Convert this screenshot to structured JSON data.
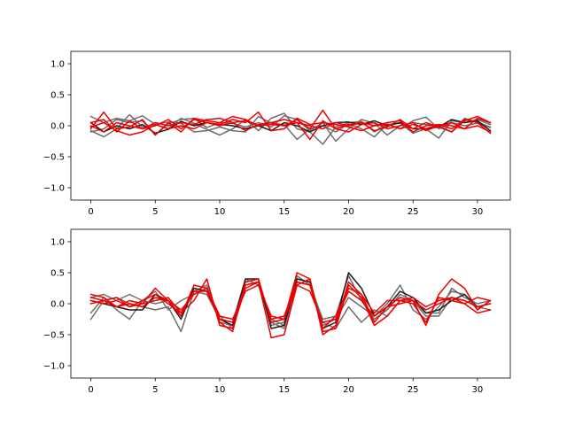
{
  "chart_data": [
    {
      "type": "line",
      "title": "",
      "xlabel": "",
      "ylabel": "",
      "xlim": [
        -1.55,
        32.55
      ],
      "ylim": [
        -1.2,
        1.2
      ],
      "xticks": [
        0,
        5,
        10,
        15,
        20,
        25,
        30
      ],
      "yticks": [
        1.0,
        0.5,
        0.0,
        -0.5,
        -1.0
      ],
      "ytick_labels": [
        "1.0",
        "0.5",
        "0.0",
        "−0.5",
        "−1.0"
      ],
      "grid": false,
      "legend": "none",
      "series": [
        {
          "color": "#6e6e6e",
          "values": [
            0.15,
            0.05,
            0.12,
            0.08,
            0.16,
            0.02,
            -0.05,
            0.12,
            0.04,
            -0.06,
            -0.15,
            -0.05,
            0.1,
            -0.08,
            0.12,
            0.2,
            -0.05,
            -0.1,
            -0.3,
            -0.02,
            0.05,
            0.07,
            -0.1,
            0.03,
            -0.05,
            0.08,
            0.14,
            -0.05,
            0.05,
            0.0,
            0.04,
            -0.03
          ]
        },
        {
          "color": "#6e6e6e",
          "values": [
            -0.08,
            -0.18,
            -0.05,
            0.18,
            -0.02,
            0.02,
            0.06,
            0.04,
            -0.1,
            -0.08,
            -0.02,
            -0.08,
            -0.1,
            0.15,
            0.04,
            0.02,
            -0.22,
            -0.05,
            0.0,
            -0.1,
            0.03,
            -0.05,
            -0.18,
            0.02,
            0.04,
            -0.12,
            -0.05,
            -0.2,
            0.08,
            0.05,
            0.1,
            0.02
          ]
        },
        {
          "color": "#6e6e6e",
          "values": [
            -0.1,
            -0.05,
            0.1,
            0.05,
            0.08,
            -0.15,
            0.03,
            0.1,
            0.12,
            -0.03,
            0.05,
            0.04,
            -0.02,
            0.05,
            -0.02,
            0.16,
            0.1,
            -0.08,
            0.05,
            -0.25,
            -0.05,
            0.1,
            0.04,
            -0.15,
            0.0,
            0.05,
            0.02,
            0.0,
            -0.1,
            0.12,
            0.06,
            -0.02
          ]
        },
        {
          "color": "#1c1c1c",
          "values": [
            0.05,
            -0.1,
            0.0,
            -0.05,
            0.02,
            -0.12,
            -0.06,
            0.07,
            0.0,
            0.05,
            0.02,
            0.0,
            -0.05,
            0.0,
            -0.08,
            0.05,
            0.0,
            -0.1,
            0.0,
            0.05,
            0.06,
            0.02,
            0.08,
            0.0,
            0.05,
            -0.05,
            -0.05,
            -0.02,
            0.1,
            0.05,
            0.08,
            -0.08
          ]
        },
        {
          "color": "#ee0000",
          "values": [
            -0.05,
            0.22,
            -0.05,
            -0.02,
            0.1,
            -0.15,
            0.05,
            -0.1,
            0.12,
            0.08,
            0.05,
            0.15,
            0.1,
            0.0,
            0.05,
            0.1,
            0.05,
            -0.22,
            0.08,
            -0.05,
            0.02,
            0.05,
            -0.08,
            -0.02,
            0.1,
            -0.05,
            0.05,
            -0.02,
            -0.1,
            0.08,
            0.15,
            0.05
          ]
        },
        {
          "color": "#ee0000",
          "values": [
            0.0,
            -0.1,
            0.05,
            0.0,
            -0.05,
            0.0,
            0.1,
            -0.05,
            0.1,
            0.05,
            0.02,
            0.1,
            0.05,
            0.22,
            -0.08,
            -0.05,
            0.12,
            0.02,
            0.05,
            0.02,
            -0.02,
            -0.08,
            0.0,
            0.05,
            0.08,
            -0.1,
            0.0,
            0.02,
            -0.05,
            0.1,
            0.05,
            -0.12
          ]
        },
        {
          "color": "#ee0000",
          "values": [
            0.05,
            0.1,
            -0.1,
            0.08,
            -0.05,
            0.05,
            0.0,
            0.05,
            0.02,
            0.1,
            0.12,
            0.05,
            -0.08,
            0.02,
            0.05,
            0.0,
            0.1,
            -0.05,
            0.25,
            -0.05,
            -0.1,
            0.02,
            0.05,
            -0.05,
            0.0,
            0.05,
            -0.08,
            0.0,
            0.05,
            -0.05,
            0.12,
            0.05
          ]
        },
        {
          "color": "#ee0000",
          "values": [
            -0.02,
            0.05,
            -0.08,
            -0.15,
            -0.1,
            0.02,
            -0.05,
            0.0,
            -0.05,
            0.05,
            0.0,
            0.05,
            0.08,
            0.0,
            0.02,
            0.0,
            0.05,
            0.0,
            -0.05,
            0.05,
            0.0,
            0.05,
            0.0,
            0.02,
            -0.05,
            0.02,
            -0.05,
            0.02,
            0.0,
            -0.05,
            0.0,
            -0.1
          ]
        }
      ]
    },
    {
      "type": "line",
      "title": "",
      "xlabel": "",
      "ylabel": "",
      "xlim": [
        -1.55,
        32.55
      ],
      "ylim": [
        -1.2,
        1.2
      ],
      "xticks": [
        0,
        5,
        10,
        15,
        20,
        25,
        30
      ],
      "yticks": [
        1.0,
        0.5,
        0.0,
        -0.5,
        -1.0
      ],
      "ytick_labels": [
        "1.0",
        "0.5",
        "0.0",
        "−0.5",
        "−1.0"
      ],
      "grid": false,
      "legend": "none",
      "series": [
        {
          "color": "#6e6e6e",
          "values": [
            -0.25,
            0.05,
            0.1,
            0.0,
            -0.05,
            -0.1,
            -0.05,
            -0.45,
            0.2,
            0.15,
            -0.25,
            -0.3,
            0.4,
            0.3,
            -0.3,
            -0.4,
            0.35,
            0.3,
            -0.35,
            -0.25,
            0.1,
            -0.05,
            -0.2,
            0.0,
            0.3,
            -0.1,
            -0.25,
            -0.05,
            0.2,
            0.15,
            -0.1,
            0.05
          ]
        },
        {
          "color": "#6e6e6e",
          "values": [
            -0.15,
            0.1,
            -0.1,
            -0.25,
            0.05,
            0.2,
            -0.1,
            0.05,
            0.15,
            0.25,
            -0.2,
            -0.4,
            0.35,
            0.4,
            -0.35,
            -0.3,
            0.4,
            0.35,
            -0.3,
            -0.4,
            -0.05,
            -0.3,
            -0.1,
            -0.2,
            0.05,
            0.05,
            -0.2,
            -0.2,
            0.1,
            0.05,
            -0.05,
            -0.1
          ]
        },
        {
          "color": "#6e6e6e",
          "values": [
            0.1,
            0.15,
            0.05,
            0.15,
            0.05,
            0.0,
            0.05,
            -0.2,
            0.2,
            0.3,
            -0.3,
            -0.35,
            0.3,
            0.35,
            -0.25,
            -0.35,
            0.45,
            0.3,
            -0.25,
            -0.2,
            0.45,
            0.05,
            -0.25,
            -0.1,
            0.15,
            0.05,
            -0.15,
            -0.15,
            0.25,
            0.1,
            0.0,
            0.05
          ]
        },
        {
          "color": "#1c1c1c",
          "values": [
            0.05,
            0.0,
            -0.05,
            -0.1,
            -0.1,
            0.15,
            0.05,
            -0.25,
            0.25,
            0.2,
            -0.25,
            -0.35,
            0.4,
            0.4,
            -0.4,
            -0.35,
            0.4,
            0.35,
            -0.4,
            -0.3,
            0.5,
            0.25,
            -0.2,
            -0.05,
            0.2,
            0.1,
            -0.15,
            -0.1,
            0.05,
            0.15,
            -0.05,
            0.0
          ]
        },
        {
          "color": "#ee0000",
          "values": [
            0.1,
            0.05,
            -0.05,
            0.05,
            0.0,
            0.25,
            0.05,
            -0.2,
            0.3,
            0.25,
            -0.3,
            -0.45,
            0.35,
            0.4,
            -0.3,
            -0.25,
            0.5,
            0.4,
            -0.5,
            -0.35,
            0.35,
            0.15,
            -0.3,
            -0.05,
            0.1,
            0.05,
            -0.35,
            0.15,
            0.4,
            0.25,
            -0.1,
            0.05
          ]
        },
        {
          "color": "#ee0000",
          "values": [
            0.0,
            0.05,
            0.1,
            -0.05,
            0.05,
            0.15,
            0.0,
            -0.15,
            0.05,
            0.4,
            -0.35,
            -0.4,
            0.25,
            0.35,
            -0.55,
            -0.5,
            0.3,
            0.4,
            -0.45,
            -0.4,
            0.3,
            0.1,
            -0.35,
            -0.2,
            0.05,
            0.0,
            -0.3,
            0.1,
            0.05,
            0.0,
            -0.15,
            -0.1
          ]
        },
        {
          "color": "#ee0000",
          "values": [
            0.05,
            0.0,
            0.05,
            -0.05,
            0.0,
            0.05,
            0.1,
            -0.15,
            0.2,
            0.2,
            -0.25,
            -0.3,
            0.3,
            0.35,
            -0.25,
            -0.2,
            0.35,
            0.3,
            -0.4,
            -0.2,
            0.25,
            0.15,
            -0.15,
            0.05,
            0.05,
            0.1,
            -0.05,
            0.05,
            0.1,
            0.0,
            0.1,
            0.05
          ]
        },
        {
          "color": "#ee0000",
          "values": [
            0.15,
            0.1,
            -0.05,
            0.0,
            -0.05,
            0.1,
            0.05,
            -0.1,
            0.15,
            0.25,
            -0.2,
            -0.25,
            0.2,
            0.3,
            -0.2,
            -0.25,
            0.3,
            0.2,
            -0.3,
            -0.25,
            0.2,
            0.05,
            -0.2,
            -0.05,
            0.0,
            0.05,
            -0.1,
            0.0,
            0.1,
            0.05,
            -0.05,
            0.0
          ]
        }
      ]
    }
  ]
}
